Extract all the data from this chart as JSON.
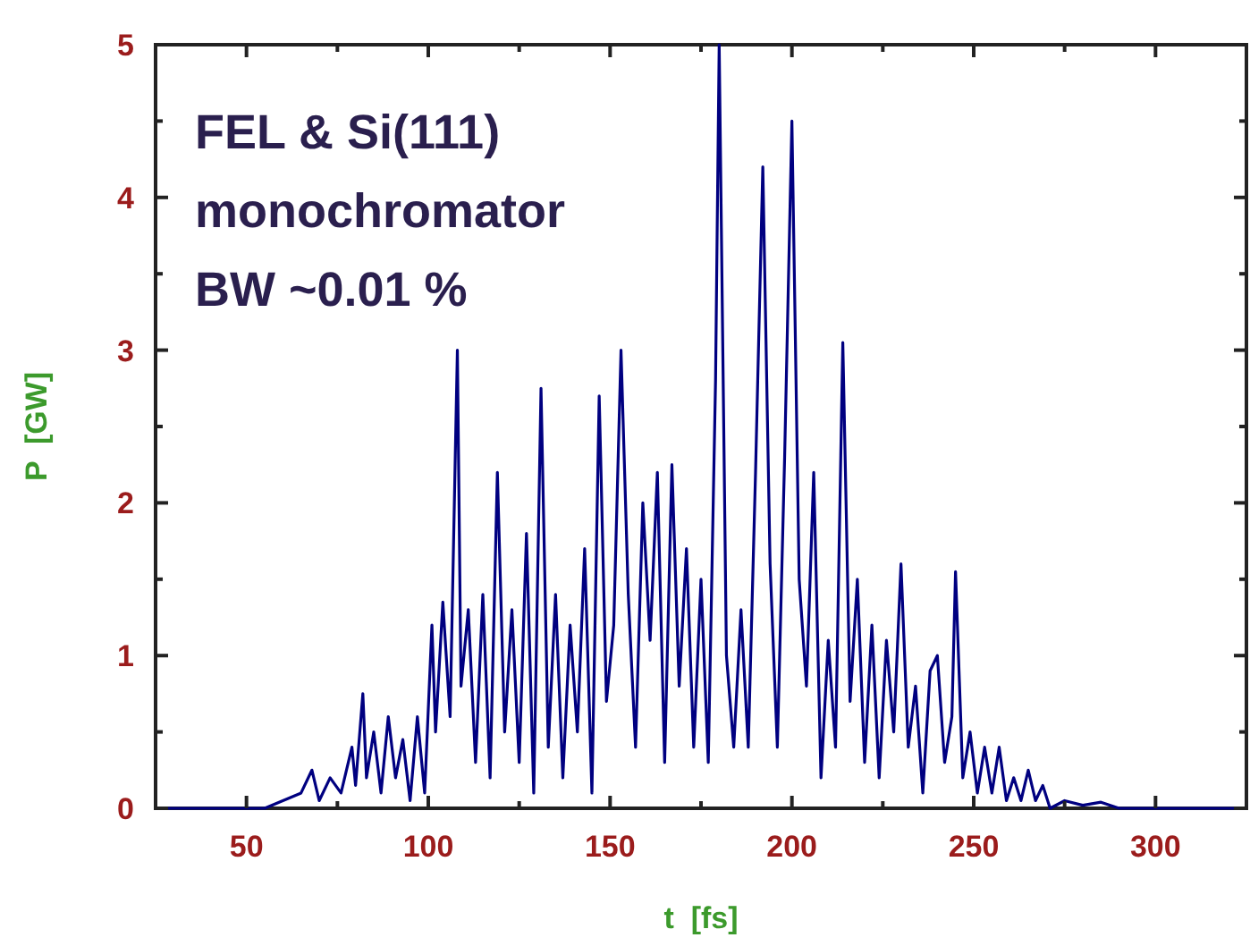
{
  "chart_data": {
    "type": "line",
    "xlabel": "t  [fs]",
    "ylabel": "P  [GW]",
    "annotations": [
      "FEL & Si(111)",
      "monochromator",
      "BW ~0.01 %"
    ],
    "xlim": [
      25,
      325
    ],
    "ylim": [
      0,
      5
    ],
    "xticks": [
      {
        "value": 25,
        "label": null
      },
      50,
      {
        "value": 75,
        "label": null
      },
      100,
      {
        "value": 125,
        "label": null
      },
      150,
      {
        "value": 175,
        "label": null
      },
      200,
      {
        "value": 225,
        "label": null
      },
      250,
      {
        "value": 275,
        "label": null
      },
      300,
      {
        "value": 325,
        "label": null
      }
    ],
    "yticks": [
      0,
      {
        "value": 0.5,
        "label": null
      },
      1,
      {
        "value": 1.5,
        "label": null
      },
      2,
      {
        "value": 2.5,
        "label": null
      },
      3,
      {
        "value": 3.5,
        "label": null
      },
      4,
      {
        "value": 4.5,
        "label": null
      },
      5
    ],
    "grid": false,
    "marker": "none",
    "line_style": "solid",
    "series": [
      {
        "color": "#000080",
        "x": [
          25,
          55,
          60,
          65,
          68,
          70,
          73,
          76,
          79,
          80,
          82,
          83,
          85,
          87,
          89,
          91,
          93,
          95,
          97,
          99,
          101,
          102,
          104,
          106,
          108,
          109,
          111,
          113,
          115,
          117,
          119,
          121,
          123,
          125,
          127,
          129,
          131,
          133,
          135,
          137,
          139,
          141,
          143,
          145,
          147,
          149,
          151,
          153,
          155,
          157,
          159,
          161,
          163,
          165,
          167,
          169,
          171,
          173,
          175,
          177,
          179,
          180,
          182,
          184,
          186,
          188,
          190,
          192,
          194,
          196,
          198,
          200,
          202,
          204,
          206,
          208,
          210,
          212,
          214,
          216,
          218,
          220,
          222,
          224,
          226,
          228,
          230,
          232,
          234,
          236,
          238,
          240,
          242,
          244,
          245,
          247,
          249,
          251,
          253,
          255,
          257,
          259,
          261,
          263,
          265,
          267,
          269,
          271,
          275,
          280,
          285,
          290,
          325
        ],
        "values": [
          0,
          0,
          0.05,
          0.1,
          0.25,
          0.05,
          0.2,
          0.1,
          0.4,
          0.15,
          0.75,
          0.2,
          0.5,
          0.1,
          0.6,
          0.2,
          0.45,
          0.05,
          0.6,
          0.1,
          1.2,
          0.5,
          1.35,
          0.6,
          3.0,
          0.8,
          1.3,
          0.3,
          1.4,
          0.2,
          2.2,
          0.5,
          1.3,
          0.3,
          1.8,
          0.1,
          2.75,
          0.4,
          1.4,
          0.2,
          1.2,
          0.5,
          1.7,
          0.1,
          2.7,
          0.7,
          1.2,
          3.0,
          1.4,
          0.4,
          2.0,
          1.1,
          2.2,
          0.3,
          2.25,
          0.8,
          1.7,
          0.4,
          1.5,
          0.3,
          2.8,
          5.0,
          1.0,
          0.4,
          1.3,
          0.4,
          2.2,
          4.2,
          1.6,
          0.4,
          2.3,
          4.5,
          1.5,
          0.8,
          2.2,
          0.2,
          1.1,
          0.4,
          3.05,
          0.7,
          1.5,
          0.3,
          1.2,
          0.2,
          1.1,
          0.5,
          1.6,
          0.4,
          0.8,
          0.1,
          0.9,
          1.0,
          0.3,
          0.6,
          1.55,
          0.2,
          0.5,
          0.1,
          0.4,
          0.1,
          0.4,
          0.05,
          0.2,
          0.05,
          0.25,
          0.05,
          0.15,
          0,
          0.05,
          0.02,
          0.04,
          0,
          0
        ]
      }
    ]
  }
}
